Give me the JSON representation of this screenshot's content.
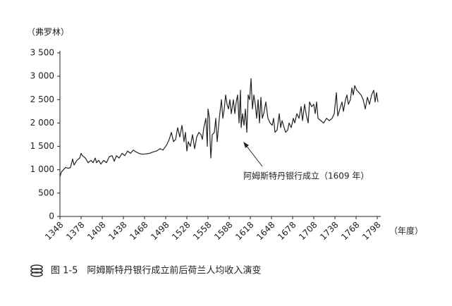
{
  "chart_data": {
    "type": "line",
    "ylabel": "（弗罗林）",
    "xlabel": "（年度）",
    "annotation": "阿姆斯特丹银行成立（1609 年）",
    "caption": "图 1-5　阿姆斯特丹银行成立前后荷兰人均收入演变",
    "color": "#222222",
    "xlim": [
      1348,
      1800
    ],
    "xticks": [
      1348,
      1378,
      1408,
      1438,
      1468,
      1498,
      1528,
      1558,
      1588,
      1618,
      1648,
      1678,
      1708,
      1738,
      1768,
      1798
    ],
    "ylim": [
      0,
      3500
    ],
    "yticks": [
      0,
      500,
      {
        "value": 1000,
        "label": "1 000"
      },
      {
        "value": 1500,
        "label": "1 500"
      },
      {
        "value": 2000,
        "label": "2 000"
      },
      {
        "value": 2500,
        "label": "2 500"
      },
      {
        "value": 3000,
        "label": "3 000"
      },
      {
        "value": 3500,
        "label": "3 500"
      }
    ],
    "x": [
      1348,
      1350,
      1353,
      1356,
      1360,
      1363,
      1366,
      1368,
      1372,
      1376,
      1378,
      1380,
      1384,
      1388,
      1392,
      1395,
      1398,
      1400,
      1403,
      1406,
      1410,
      1414,
      1418,
      1422,
      1425,
      1428,
      1432,
      1436,
      1440,
      1444,
      1448,
      1452,
      1456,
      1460,
      1465,
      1470,
      1475,
      1480,
      1485,
      1490,
      1494,
      1498,
      1500,
      1503,
      1506,
      1509,
      1512,
      1515,
      1518,
      1521,
      1524,
      1526,
      1528,
      1530,
      1533,
      1536,
      1539,
      1542,
      1545,
      1548,
      1550,
      1552,
      1555,
      1557,
      1558,
      1560,
      1561,
      1562,
      1564,
      1567,
      1569,
      1571,
      1574,
      1577,
      1579,
      1581,
      1583,
      1585,
      1587,
      1589,
      1591,
      1594,
      1596,
      1598,
      1600,
      1602,
      1604,
      1605,
      1607,
      1609,
      1611,
      1613,
      1615,
      1617,
      1619,
      1621,
      1623,
      1625,
      1627,
      1629,
      1631,
      1633,
      1635,
      1637,
      1640,
      1643,
      1646,
      1649,
      1651,
      1653,
      1656,
      1659,
      1661,
      1663,
      1665,
      1668,
      1671,
      1673,
      1676,
      1679,
      1681,
      1684,
      1687,
      1690,
      1692,
      1695,
      1697,
      1700,
      1702,
      1705,
      1708,
      1710,
      1712,
      1714,
      1718,
      1722,
      1726,
      1730,
      1734,
      1737,
      1740,
      1742,
      1745,
      1748,
      1750,
      1753,
      1755,
      1757,
      1760,
      1762,
      1764,
      1766,
      1769,
      1772,
      1775,
      1778,
      1781,
      1784,
      1787,
      1790,
      1793,
      1795,
      1797,
      1799
    ],
    "values": [
      850,
      950,
      1000,
      1050,
      1030,
      1050,
      1230,
      1100,
      1200,
      1250,
      1350,
      1300,
      1250,
      1150,
      1200,
      1150,
      1250,
      1150,
      1200,
      1120,
      1200,
      1150,
      1280,
      1300,
      1180,
      1300,
      1250,
      1350,
      1300,
      1400,
      1350,
      1420,
      1380,
      1350,
      1330,
      1340,
      1350,
      1380,
      1400,
      1450,
      1420,
      1500,
      1550,
      1650,
      1800,
      1600,
      1650,
      1900,
      1700,
      1950,
      1600,
      1800,
      1400,
      1600,
      1500,
      1750,
      1450,
      1700,
      1800,
      1750,
      1650,
      1900,
      2100,
      1500,
      2300,
      2100,
      1600,
      1250,
      1750,
      1800,
      2100,
      1600,
      2100,
      2500,
      2100,
      2300,
      2600,
      2400,
      2300,
      2500,
      2200,
      2500,
      2200,
      2450,
      2600,
      2000,
      2700,
      1900,
      2200,
      1950,
      2300,
      1800,
      2600,
      2500,
      2950,
      2300,
      2600,
      2400,
      2100,
      2500,
      2000,
      2550,
      2100,
      2200,
      2450,
      2100,
      2000,
      1950,
      2100,
      1800,
      1850,
      2200,
      1900,
      2050,
      1950,
      1800,
      1850,
      2000,
      1900,
      2100,
      2000,
      2200,
      2100,
      2350,
      2050,
      2400,
      2200,
      2000,
      2450,
      2350,
      2400,
      2200,
      2450,
      2100,
      2050,
      2000,
      2100,
      2050,
      2100,
      2200,
      2650,
      2150,
      2300,
      2450,
      2250,
      2500,
      2600,
      2400,
      2500,
      2750,
      2600,
      2800,
      2700,
      2650,
      2600,
      2500,
      2300,
      2550,
      2400,
      2600,
      2700,
      2450,
      2650,
      2450
    ]
  }
}
